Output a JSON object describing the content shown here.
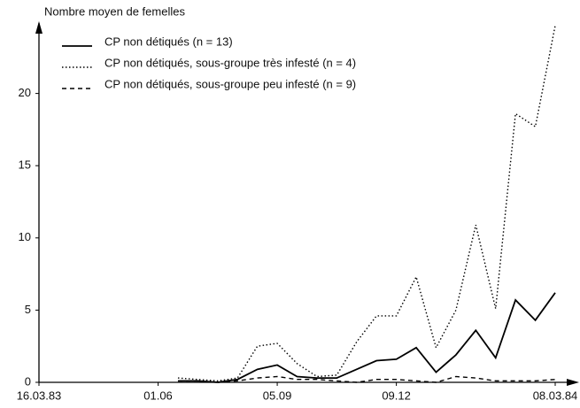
{
  "chart_data": {
    "type": "line",
    "y_label": "Nombre moyen de femelles",
    "categories": [
      "16.03.83",
      null,
      null,
      null,
      null,
      null,
      "01.06",
      null,
      null,
      null,
      null,
      null,
      "05.09",
      null,
      null,
      null,
      null,
      null,
      "09.12",
      null,
      null,
      null,
      null,
      null,
      null,
      null,
      "08.03.84"
    ],
    "ylim": [
      0,
      25
    ],
    "yticks": [
      0,
      5,
      10,
      15,
      20
    ],
    "series": [
      {
        "name": "CP non détiqués (n = 13)",
        "color": "#000000",
        "linestyle": "solid",
        "values": [
          null,
          null,
          null,
          null,
          null,
          null,
          null,
          0.1,
          0.1,
          0.0,
          0.2,
          0.9,
          1.2,
          0.4,
          0.3,
          0.3,
          0.9,
          1.5,
          1.6,
          2.4,
          0.7,
          1.9,
          3.6,
          1.7,
          5.7,
          4.3,
          6.2
        ]
      },
      {
        "name": "CP non détiqués, sous-groupe très infesté (n = 4)",
        "color": "#000000",
        "linestyle": "dotted",
        "values": [
          null,
          null,
          null,
          null,
          null,
          null,
          null,
          0.3,
          0.2,
          0.1,
          0.3,
          2.5,
          2.7,
          1.3,
          0.4,
          0.5,
          2.8,
          4.6,
          4.6,
          7.3,
          2.4,
          5.0,
          10.9,
          5.1,
          18.6,
          17.7,
          24.7
        ]
      },
      {
        "name": "CP non détiqués, sous-groupe peu infesté (n = 9)",
        "color": "#000000",
        "linestyle": "dashed",
        "values": [
          null,
          null,
          null,
          null,
          null,
          null,
          null,
          0.1,
          0.1,
          0.0,
          0.1,
          0.3,
          0.4,
          0.2,
          0.2,
          0.1,
          0.0,
          0.2,
          0.2,
          0.1,
          0.0,
          0.4,
          0.3,
          0.1,
          0.1,
          0.1,
          0.2
        ]
      }
    ]
  }
}
